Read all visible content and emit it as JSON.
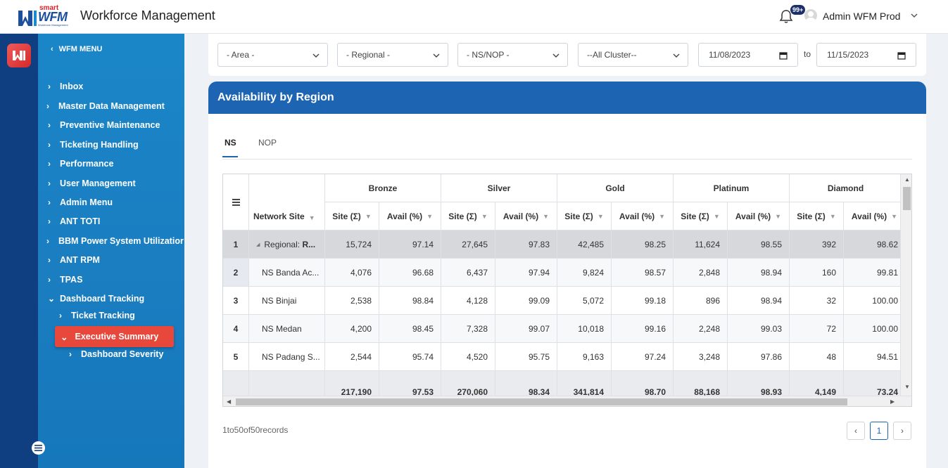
{
  "header": {
    "logo_small": "smart",
    "logo_main": "WFM",
    "logo_tagline": "Workforce Management",
    "title": "Workforce Management",
    "notification_count": "99+",
    "user_name": "Admin WFM Prod"
  },
  "sidebar": {
    "heading": "WFM MENU",
    "items": [
      {
        "label": "Inbox"
      },
      {
        "label": "Master Data Management"
      },
      {
        "label": "Preventive Maintenance"
      },
      {
        "label": "Ticketing Handling"
      },
      {
        "label": "Performance"
      },
      {
        "label": "User Management"
      },
      {
        "label": "Admin Menu"
      },
      {
        "label": "ANT TOTI"
      },
      {
        "label": "BBM Power System Utilizatior"
      },
      {
        "label": "ANT RPM"
      },
      {
        "label": "TPAS"
      },
      {
        "label": "Dashboard Tracking"
      }
    ],
    "sub_items": [
      {
        "label": "Ticket Tracking"
      },
      {
        "label": "Executive Summary"
      },
      {
        "label": "Dashboard Severity"
      }
    ],
    "active_color": "#e8473b"
  },
  "filters": {
    "area": "- Area -",
    "regional": "- Regional -",
    "ns_nop": "- NS/NOP -",
    "cluster": "--All Cluster--",
    "date_from": "11/08/2023",
    "to_label": "to",
    "date_to": "11/15/2023"
  },
  "card": {
    "title": "Availability by Region",
    "header_color": "#1d64b3",
    "tabs": [
      "NS",
      "NOP"
    ],
    "active_tab": "NS"
  },
  "grid": {
    "network_site_header": "Network Site",
    "groups": [
      "Bronze",
      "Silver",
      "Gold",
      "Platinum",
      "Diamond"
    ],
    "sub_headers": [
      "Site (Σ)",
      "Avail (%)"
    ],
    "rows": [
      {
        "num": "1",
        "name": "Regional: R...",
        "prefix": "Regional: ",
        "bold": "R...",
        "values": [
          "15,724",
          "97.14",
          "27,645",
          "97.83",
          "42,485",
          "98.25",
          "11,624",
          "98.55",
          "392",
          "98.62"
        ]
      },
      {
        "num": "2",
        "name": "NS Banda Ac...",
        "values": [
          "4,076",
          "96.68",
          "6,437",
          "97.94",
          "9,824",
          "98.57",
          "2,848",
          "98.94",
          "160",
          "99.81"
        ]
      },
      {
        "num": "3",
        "name": "NS Binjai",
        "values": [
          "2,538",
          "98.84",
          "4,128",
          "99.09",
          "5,072",
          "99.18",
          "896",
          "98.94",
          "32",
          "100.00"
        ]
      },
      {
        "num": "4",
        "name": "NS Medan",
        "values": [
          "4,200",
          "98.45",
          "7,328",
          "99.07",
          "10,018",
          "99.16",
          "2,248",
          "99.03",
          "72",
          "100.00"
        ]
      },
      {
        "num": "5",
        "name": "NS Padang S...",
        "values": [
          "2,544",
          "95.74",
          "4,520",
          "95.75",
          "9,163",
          "97.24",
          "3,248",
          "97.86",
          "48",
          "94.51"
        ]
      }
    ],
    "totals": [
      "217,190",
      "97.53",
      "270,060",
      "98.34",
      "341,814",
      "98.70",
      "88,168",
      "98.93",
      "4,149",
      "73.24"
    ]
  },
  "pagination": {
    "records_text": "1to50of50records",
    "current_page": "1"
  }
}
